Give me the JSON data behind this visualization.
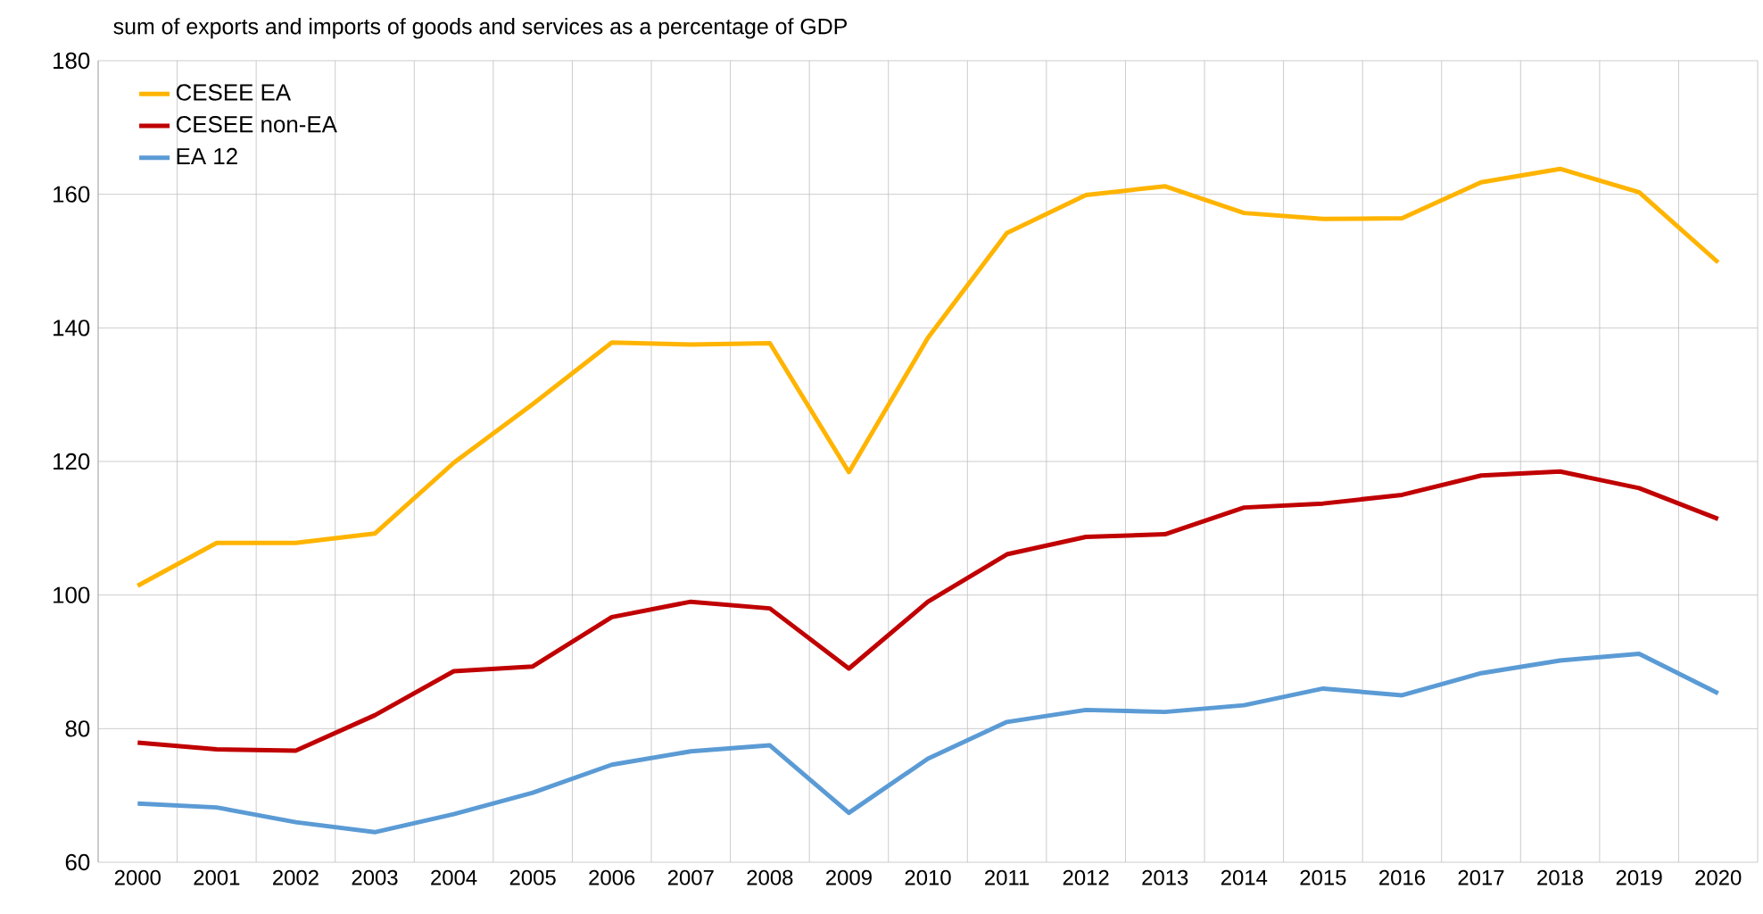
{
  "chart_data": {
    "type": "line",
    "title": "sum of exports and imports of goods and services as a percentage of GDP",
    "categories": [
      "2000",
      "2001",
      "2002",
      "2003",
      "2004",
      "2005",
      "2006",
      "2007",
      "2008",
      "2009",
      "2010",
      "2011",
      "2012",
      "2013",
      "2014",
      "2015",
      "2016",
      "2017",
      "2018",
      "2019",
      "2020"
    ],
    "series": [
      {
        "name": "CESEE EA",
        "color": "#ffb400",
        "values": [
          101.4,
          107.8,
          107.8,
          109.2,
          119.8,
          128.6,
          137.8,
          137.5,
          137.7,
          118.4,
          138.5,
          154.2,
          159.9,
          161.2,
          157.2,
          156.3,
          156.4,
          161.8,
          163.8,
          160.3,
          149.8
        ]
      },
      {
        "name": "CESEE non-EA",
        "color": "#c00000",
        "values": [
          77.9,
          76.9,
          76.7,
          82.0,
          88.6,
          89.3,
          96.7,
          99.0,
          98.0,
          89.0,
          99.0,
          106.1,
          108.7,
          109.1,
          113.1,
          113.7,
          115.0,
          117.9,
          118.5,
          116.0,
          111.4
        ]
      },
      {
        "name": "EA 12",
        "color": "#5b9bd5",
        "values": [
          68.8,
          68.2,
          66.0,
          64.5,
          67.2,
          70.4,
          74.6,
          76.6,
          77.5,
          67.4,
          75.5,
          81.0,
          82.8,
          82.5,
          83.5,
          86.0,
          85.0,
          88.3,
          90.2,
          91.2,
          85.3
        ]
      }
    ],
    "ylim": [
      60,
      180
    ],
    "yticks": [
      60,
      80,
      100,
      120,
      140,
      160,
      180
    ],
    "grid": true,
    "legend": "top left",
    "marker": "none",
    "line_style": "solid"
  }
}
